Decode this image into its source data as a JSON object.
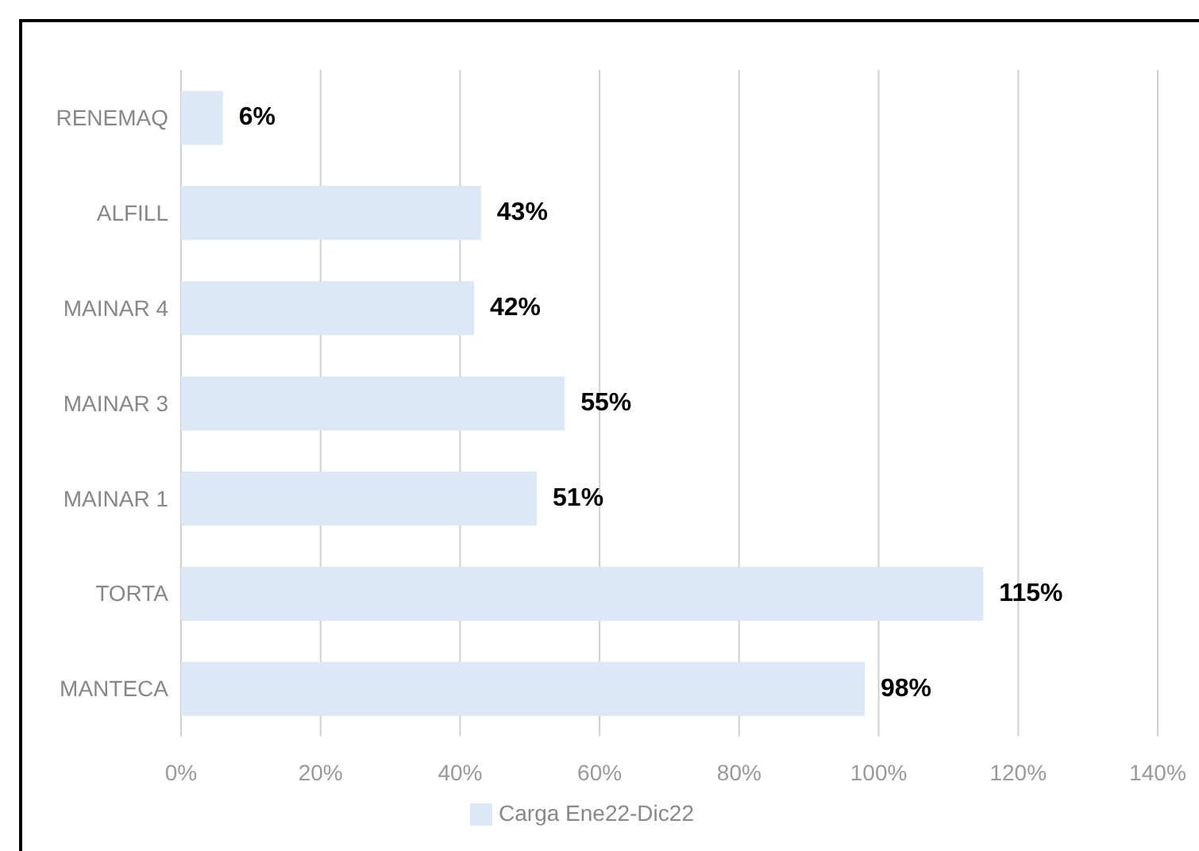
{
  "chart_data": {
    "type": "bar",
    "orientation": "horizontal",
    "categories": [
      "RENEMAQ",
      "ALFILL",
      "MAINAR 4",
      "MAINAR 3",
      "MAINAR 1",
      "TORTA",
      "MANTECA"
    ],
    "series": [
      {
        "name": "Carga Ene22-Dic22",
        "color": "#dce8f6",
        "values": [
          6,
          43,
          42,
          55,
          51,
          115,
          98
        ]
      }
    ],
    "value_labels": [
      "6%",
      "43%",
      "42%",
      "55%",
      "51%",
      "115%",
      "98%"
    ],
    "xlim": [
      0,
      140
    ],
    "xticks": [
      {
        "value": 0,
        "label": "0%"
      },
      {
        "value": 20,
        "label": "20%"
      },
      {
        "value": 40,
        "label": "40%"
      },
      {
        "value": 60,
        "label": "60%"
      },
      {
        "value": 80,
        "label": "80%"
      },
      {
        "value": 100,
        "label": "100%"
      },
      {
        "value": 120,
        "label": "120%"
      },
      {
        "value": 140,
        "label": "140%"
      }
    ],
    "grid": "x",
    "legend": "bottom"
  }
}
